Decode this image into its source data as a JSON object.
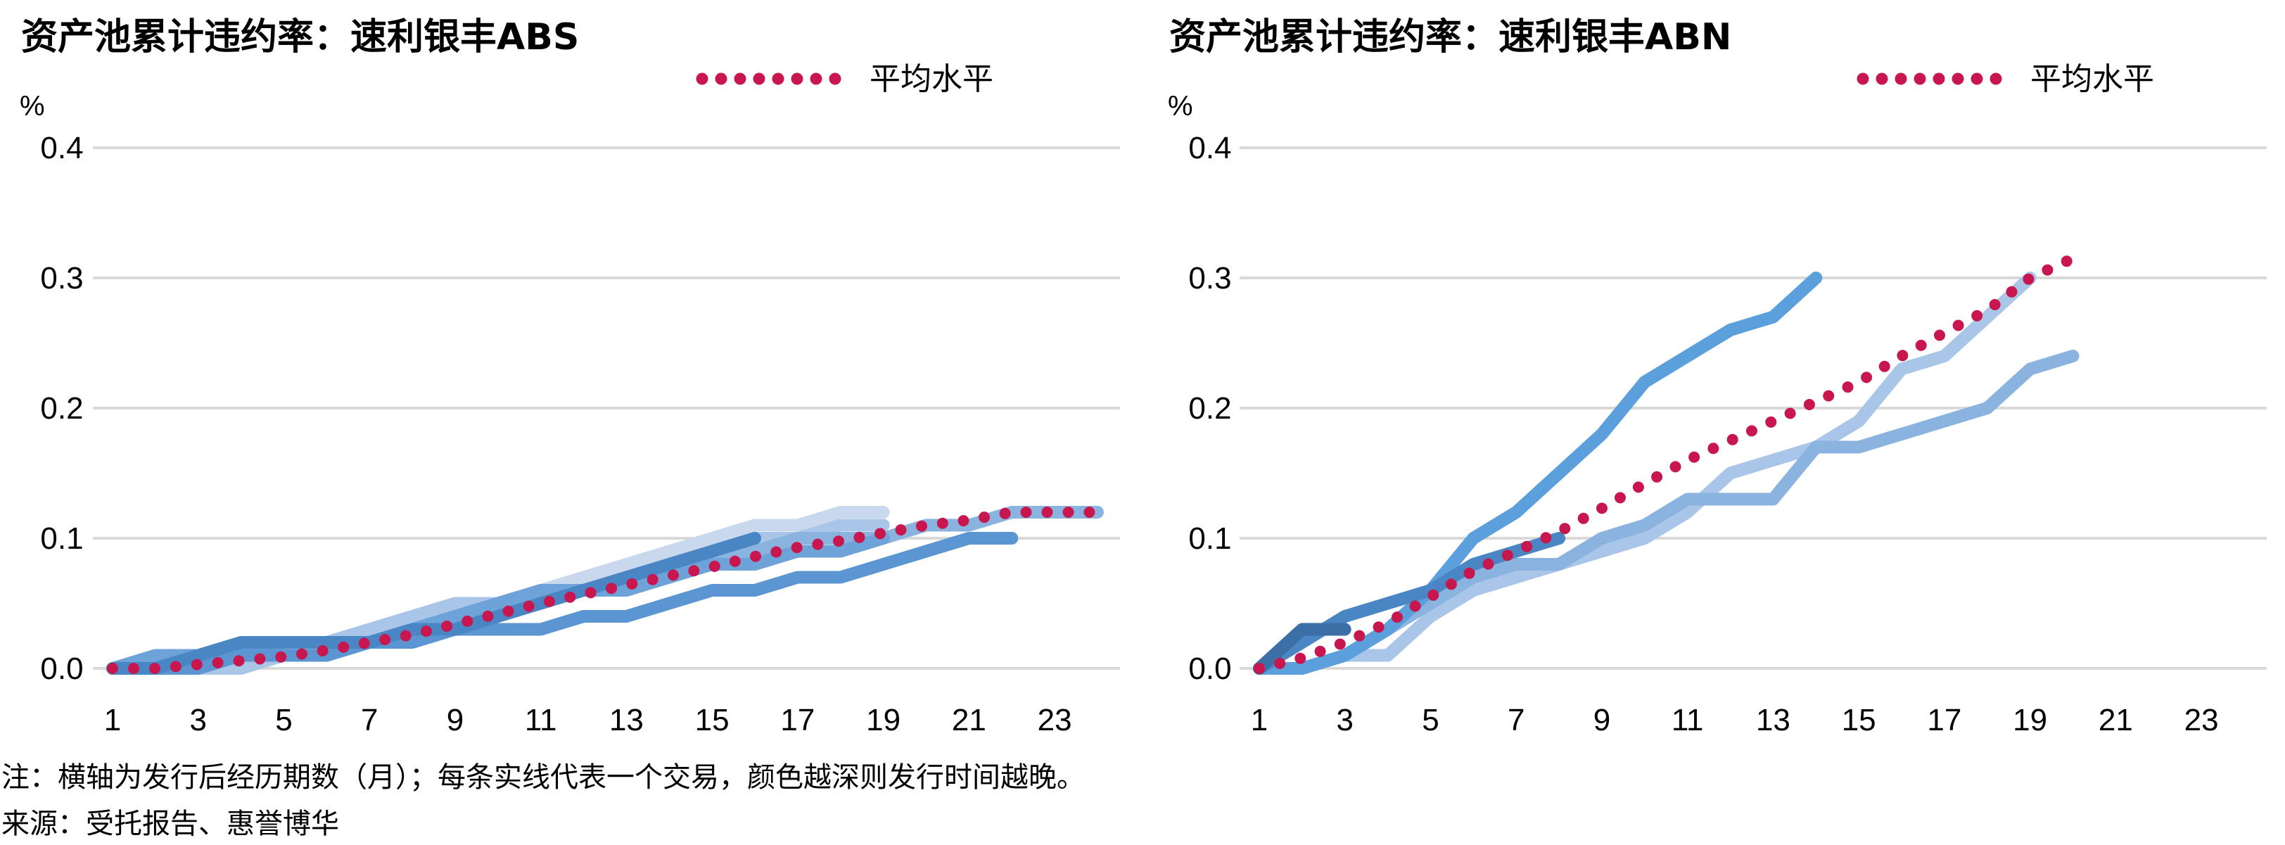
{
  "chart_data": [
    {
      "type": "line",
      "title": "资产池累计违约率：速利银丰ABS",
      "ylabel": "%",
      "xlabel": "",
      "ylim": [
        0,
        0.4
      ],
      "yticks": [
        "0.0",
        "0.1",
        "0.2",
        "0.3",
        "0.4"
      ],
      "yticks_values": [
        0,
        0.1,
        0.2,
        0.3,
        0.4
      ],
      "xlim": [
        1,
        24
      ],
      "xticks": [
        "1",
        "3",
        "5",
        "7",
        "9",
        "11",
        "13",
        "15",
        "17",
        "19",
        "21",
        "23"
      ],
      "xticks_values": [
        1,
        3,
        5,
        7,
        9,
        11,
        13,
        15,
        17,
        19,
        21,
        23
      ],
      "grid": "horizontal",
      "legend_position": "top-right",
      "series": [
        {
          "color": "#cad8ee",
          "x": [
            1,
            2,
            3,
            4,
            5,
            6,
            7,
            8,
            9,
            10,
            11,
            12,
            13,
            14,
            15,
            16,
            17,
            18,
            19
          ],
          "y": [
            0,
            0,
            0,
            0.01,
            0.01,
            0.02,
            0.03,
            0.04,
            0.05,
            0.05,
            0.06,
            0.07,
            0.08,
            0.09,
            0.1,
            0.11,
            0.11,
            0.12,
            0.12
          ]
        },
        {
          "color": "#a9c6e8",
          "x": [
            1,
            2,
            3,
            4,
            5,
            6,
            7,
            8,
            9,
            10,
            11,
            12,
            13,
            14,
            15,
            16,
            17,
            18,
            19
          ],
          "y": [
            0,
            0,
            0,
            0,
            0.01,
            0.02,
            0.03,
            0.04,
            0.05,
            0.05,
            0.05,
            0.06,
            0.07,
            0.08,
            0.09,
            0.1,
            0.1,
            0.11,
            0.11
          ]
        },
        {
          "color": "#8ab3e0",
          "x": [
            1,
            2,
            3,
            4,
            5,
            6,
            7,
            8,
            9,
            10,
            11,
            12,
            13,
            14,
            15,
            16,
            17,
            18,
            19,
            20,
            21,
            22,
            23,
            24
          ],
          "y": [
            0,
            0,
            0.01,
            0.01,
            0.01,
            0.01,
            0.02,
            0.03,
            0.04,
            0.05,
            0.06,
            0.06,
            0.07,
            0.07,
            0.08,
            0.09,
            0.1,
            0.1,
            0.1,
            0.11,
            0.11,
            0.12,
            0.12,
            0.12
          ]
        },
        {
          "color": "#6ea3d9",
          "x": [
            1,
            2,
            3,
            4,
            5,
            6,
            7,
            8,
            9,
            10,
            11,
            12,
            13,
            14,
            15,
            16,
            17,
            18,
            19
          ],
          "y": [
            0,
            0.01,
            0.01,
            0.01,
            0.02,
            0.02,
            0.02,
            0.03,
            0.04,
            0.05,
            0.06,
            0.06,
            0.06,
            0.07,
            0.08,
            0.08,
            0.09,
            0.09,
            0.1
          ]
        },
        {
          "color": "#5b96d2",
          "x": [
            1,
            2,
            3,
            4,
            5,
            6,
            7,
            8,
            9,
            10,
            11,
            12,
            13,
            14,
            15,
            16,
            17,
            18,
            19,
            20,
            21,
            22
          ],
          "y": [
            0,
            0,
            0,
            0.01,
            0.01,
            0.01,
            0.02,
            0.02,
            0.03,
            0.03,
            0.03,
            0.04,
            0.04,
            0.05,
            0.06,
            0.06,
            0.07,
            0.07,
            0.08,
            0.09,
            0.1,
            0.1
          ]
        },
        {
          "color": "#4a86c4",
          "x": [
            1,
            2,
            3,
            4,
            5,
            6,
            7,
            8,
            9,
            10,
            11,
            12,
            13,
            14,
            15,
            16
          ],
          "y": [
            0,
            0,
            0.01,
            0.02,
            0.02,
            0.02,
            0.02,
            0.03,
            0.03,
            0.04,
            0.05,
            0.06,
            0.07,
            0.08,
            0.09,
            0.1
          ]
        }
      ],
      "average": {
        "name": "平均水平",
        "color": "#c8174f",
        "x": [
          1,
          2,
          3,
          4,
          5,
          6,
          7,
          8,
          9,
          10,
          11,
          12,
          13,
          14,
          15,
          16,
          17,
          18,
          19,
          20,
          21,
          22,
          23,
          24
        ],
        "y": [
          0,
          0,
          0.003,
          0.006,
          0.009,
          0.014,
          0.02,
          0.026,
          0.034,
          0.042,
          0.05,
          0.057,
          0.064,
          0.071,
          0.078,
          0.086,
          0.093,
          0.098,
          0.104,
          0.11,
          0.114,
          0.12,
          0.12,
          0.12
        ]
      }
    },
    {
      "type": "line",
      "title": "资产池累计违约率：速利银丰ABN",
      "ylabel": "%",
      "xlabel": "",
      "ylim": [
        0,
        0.4
      ],
      "yticks": [
        "0.0",
        "0.1",
        "0.2",
        "0.3",
        "0.4"
      ],
      "yticks_values": [
        0,
        0.1,
        0.2,
        0.3,
        0.4
      ],
      "xlim": [
        1,
        24
      ],
      "xticks": [
        "1",
        "3",
        "5",
        "7",
        "9",
        "11",
        "13",
        "15",
        "17",
        "19",
        "21",
        "23"
      ],
      "xticks_values": [
        1,
        3,
        5,
        7,
        9,
        11,
        13,
        15,
        17,
        19,
        21,
        23
      ],
      "grid": "horizontal",
      "legend_position": "top-right",
      "series": [
        {
          "color": "#a9c6e8",
          "x": [
            1,
            2,
            3,
            4,
            5,
            6,
            7,
            8,
            9,
            10,
            11,
            12,
            13,
            14,
            15,
            16,
            17,
            18,
            19
          ],
          "y": [
            0,
            0,
            0.01,
            0.01,
            0.04,
            0.06,
            0.07,
            0.08,
            0.09,
            0.1,
            0.12,
            0.15,
            0.16,
            0.17,
            0.19,
            0.23,
            0.24,
            0.27,
            0.3
          ]
        },
        {
          "color": "#8ab3e0",
          "x": [
            1,
            2,
            3,
            4,
            5,
            6,
            7,
            8,
            9,
            10,
            11,
            12,
            13,
            14,
            15,
            16,
            17,
            18,
            19,
            20
          ],
          "y": [
            0,
            0,
            0.01,
            0.03,
            0.05,
            0.07,
            0.08,
            0.08,
            0.1,
            0.11,
            0.13,
            0.13,
            0.13,
            0.17,
            0.17,
            0.18,
            0.19,
            0.2,
            0.23,
            0.24
          ]
        },
        {
          "color": "#5b9fdc",
          "x": [
            1,
            2,
            3,
            4,
            5,
            6,
            7,
            8,
            9,
            10,
            11,
            12,
            13,
            14
          ],
          "y": [
            0,
            0,
            0.01,
            0.03,
            0.06,
            0.1,
            0.12,
            0.15,
            0.18,
            0.22,
            0.24,
            0.26,
            0.27,
            0.3
          ]
        },
        {
          "color": "#4a86c4",
          "x": [
            1,
            2,
            3,
            4,
            5,
            6,
            7,
            8
          ],
          "y": [
            0,
            0.02,
            0.04,
            0.05,
            0.06,
            0.08,
            0.09,
            0.1
          ]
        },
        {
          "color": "#3b6fa6",
          "x": [
            1,
            2,
            3
          ],
          "y": [
            0,
            0.03,
            0.03
          ]
        }
      ],
      "average": {
        "name": "平均水平",
        "color": "#c8174f",
        "x": [
          1,
          2,
          3,
          4,
          5,
          6,
          7,
          8,
          9,
          10,
          11,
          12,
          13,
          14,
          15,
          16,
          17,
          18,
          19,
          20
        ],
        "y": [
          0,
          0.008,
          0.02,
          0.035,
          0.055,
          0.075,
          0.09,
          0.105,
          0.123,
          0.142,
          0.16,
          0.175,
          0.19,
          0.205,
          0.22,
          0.24,
          0.258,
          0.275,
          0.3,
          0.315
        ]
      }
    }
  ],
  "notes": {
    "note": "注：横轴为发行后经历期数（月）；每条实线代表一个交易，颜色越深则发行时间越晚。",
    "source": "来源：受托报告、惠誉博华"
  }
}
